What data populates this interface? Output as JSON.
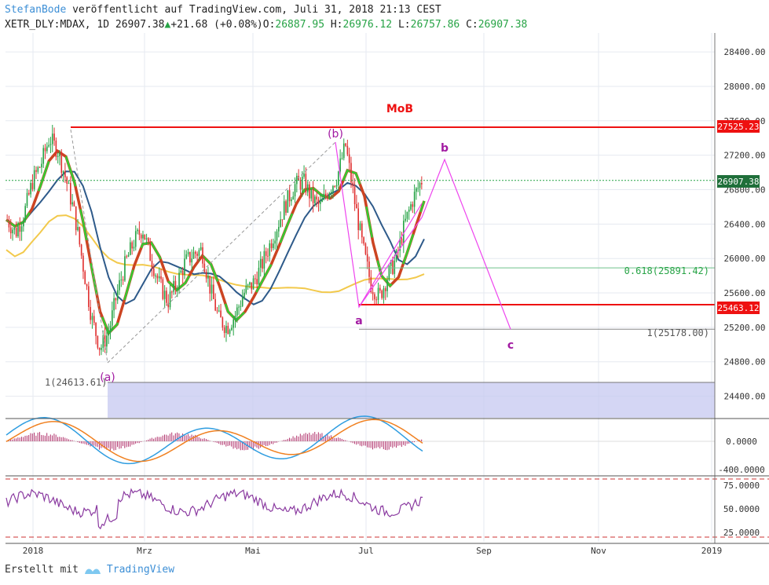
{
  "header": {
    "author": "StefanBode",
    "published": " veröffentlicht auf TradingView.com, Juli 31, 2018 21:13 CEST",
    "symbol": "XETR_DLY:MDAX, 1D",
    "last": "26907.38",
    "change": "+21.68 (+0.08%)",
    "o_label": "O:",
    "o": "26887.95",
    "h_label": "H:",
    "h": "26976.12",
    "l_label": "L:",
    "l": "26757.86",
    "c_label": "C:",
    "c": "26907.38"
  },
  "footer": {
    "created": "Erstellt mit",
    "brand": "TradingView"
  },
  "colors": {
    "up": "#26a345",
    "down": "#e03030",
    "resistance": "#ee1111",
    "projection": "#ee44ee",
    "wave_label": "#a21aa2",
    "ema_fast": "#33cc33",
    "ema_slow": "#cc4422",
    "ma_mid": "#2e5a8a",
    "ma_long": "#f2c94c",
    "zone": "#c5c8f0",
    "rsi": "#8a3aa0",
    "macd": "#2f9de0",
    "signal": "#f08020"
  },
  "chart_data": {
    "type": "candlestick",
    "title": "MoB",
    "y_axis": {
      "ticks": [
        28400,
        28000,
        27600,
        27200,
        26800,
        26400,
        26000,
        25600,
        25200,
        24800,
        24400
      ],
      "ylim": [
        24150,
        28620
      ]
    },
    "x_axis": {
      "labels": [
        "2018",
        "Mrz",
        "Mai",
        "Jul",
        "Sep",
        "Nov",
        "2019"
      ]
    },
    "price_badges": [
      "27525.23",
      "26907.38",
      "25463.12"
    ],
    "levels": [
      {
        "label": "0.618(25891.42)",
        "value": 25891.42
      },
      {
        "label": "1(25178.00)",
        "value": 25178.0
      },
      {
        "label": "1(24613.61)",
        "value": 24613.61
      }
    ],
    "resistance": [
      27525.23,
      25463.12
    ],
    "wave_labels": [
      "(a)",
      "(b)",
      "a",
      "b",
      "c"
    ],
    "projection": [
      [
        "b",
        27150
      ],
      [
        "c",
        25178
      ]
    ],
    "close_path": [
      26450,
      26300,
      26520,
      26900,
      27100,
      27400,
      27250,
      26900,
      26500,
      25900,
      25300,
      24950,
      25150,
      25600,
      25950,
      26200,
      26350,
      26000,
      25700,
      25500,
      25700,
      25950,
      26050,
      26100,
      25650,
      25300,
      25200,
      25350,
      25600,
      25700,
      25900,
      26150,
      26400,
      26650,
      26850,
      26900,
      26700,
      26600,
      26800,
      26950,
      27320,
      26700,
      26150,
      25700,
      25550,
      25800,
      26000,
      26400,
      26700,
      26907
    ],
    "indicators": {
      "macd": {
        "ticks": [
          "0.0000",
          "-400.0000"
        ]
      },
      "rsi": {
        "ticks": [
          "75.0000",
          "50.0000",
          "25.0000"
        ]
      }
    }
  }
}
